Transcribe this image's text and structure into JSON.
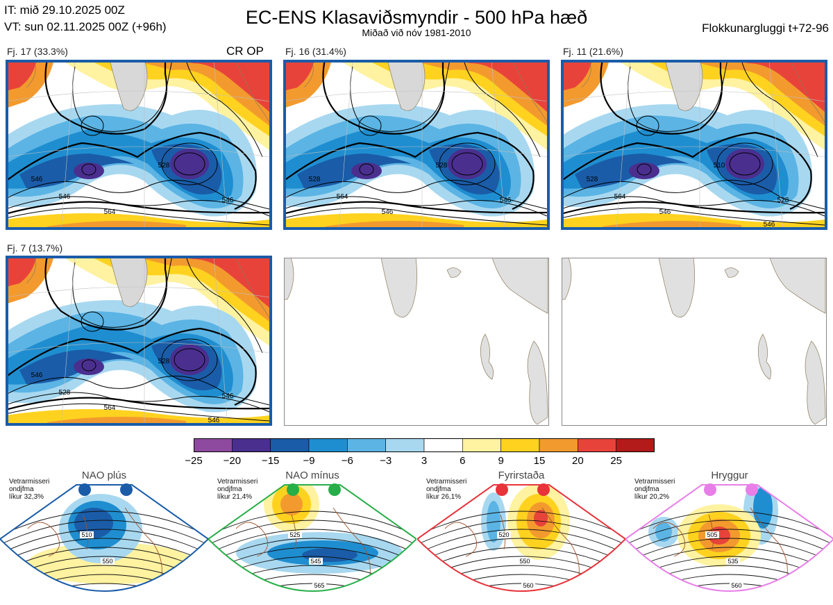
{
  "header": {
    "it_line": "IT: mið 29.10.2025 00Z",
    "vt_line": "VT: sun 02.11.2025 00Z  (+96h)",
    "title": "EC-ENS Klasaviðsmyndir - 500 hPa hæð",
    "subtitle": "Miðað við nóv 1981-2010",
    "window": "Flokkunargluggi t+72-96"
  },
  "panels": [
    {
      "label": "Fj. 17 (33.3%)",
      "op": "CR OP",
      "contours": [
        "528",
        "546",
        "564",
        "546",
        "546"
      ]
    },
    {
      "label": "Fj. 16 (31.4%)",
      "op": "",
      "contours": [
        "528",
        "528",
        "546",
        "564",
        "546"
      ]
    },
    {
      "label": "Fj. 11 (21.6%)",
      "op": "",
      "contours": [
        "510",
        "528",
        "546",
        "564",
        "528",
        "546"
      ]
    },
    {
      "label": "Fj. 7 (13.7%)",
      "op": "",
      "contours": [
        "528",
        "546",
        "564",
        "528",
        "546",
        "546"
      ]
    }
  ],
  "colorbar": {
    "labels": [
      "−25",
      "−20",
      "−15",
      "−9",
      "−6",
      "−3",
      "3",
      "6",
      "9",
      "15",
      "20",
      "25"
    ],
    "colors": [
      "#8e4a9e",
      "#4a2f8f",
      "#1a5ca8",
      "#1f8ed0",
      "#5bb4e4",
      "#a8d8f0",
      "#ffffff",
      "#fff2a0",
      "#ffd21f",
      "#f39a2e",
      "#e8433a",
      "#b31a1a"
    ]
  },
  "regimes": [
    {
      "name": "NAO plús",
      "note": [
        "Vetrarmisseri",
        "ondjfma",
        "líkur 32,3%"
      ],
      "color": "#1a5ca8",
      "contours": [
        "510",
        "550"
      ]
    },
    {
      "name": "NAO mínus",
      "note": [
        "Vetrarmisseri",
        "ondjfma",
        "líkur 21,4%"
      ],
      "color": "#27ae48",
      "contours": [
        "525",
        "545",
        "565"
      ]
    },
    {
      "name": "Fyrirstaða",
      "note": [
        "Vetrarmisseri",
        "ondjfma",
        "líkur 26,1%"
      ],
      "color": "#e8333a",
      "contours": [
        "520",
        "550",
        "560"
      ]
    },
    {
      "name": "Hryggur",
      "note": [
        "Vetrarmisseri",
        "ondjfma",
        "líkur 20,2%"
      ],
      "color": "#e87ee8",
      "contours": [
        "505",
        "535",
        "560"
      ]
    }
  ]
}
